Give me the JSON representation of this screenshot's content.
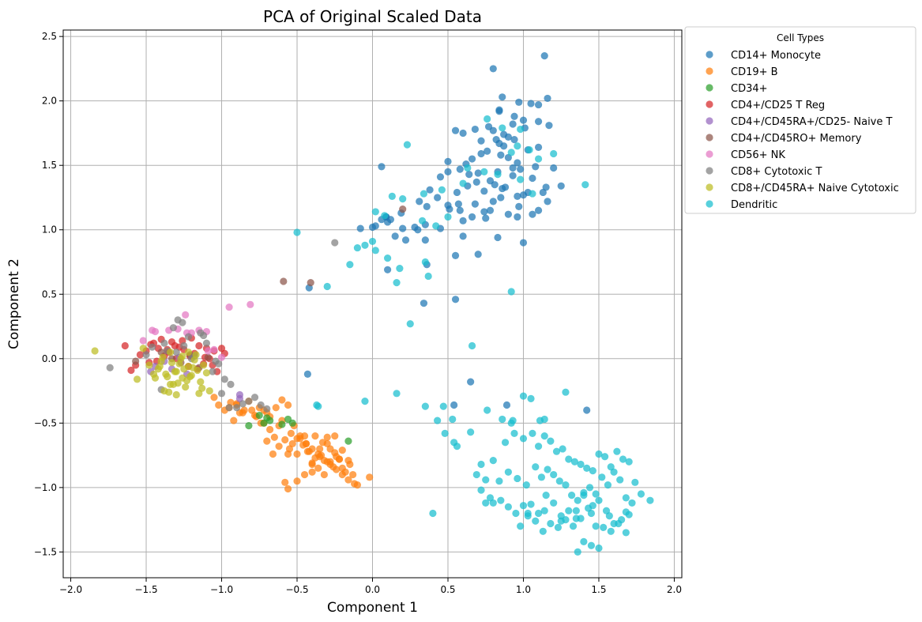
{
  "chart_data": {
    "type": "scatter",
    "title": "PCA of Original Scaled Data",
    "xlabel": "Component 1",
    "ylabel": "Component 2",
    "xlim": [
      -2.05,
      2.05
    ],
    "ylim": [
      -1.7,
      2.55
    ],
    "xticks": [
      -2.0,
      -1.5,
      -1.0,
      -0.5,
      0.0,
      0.5,
      1.0,
      1.5,
      2.0
    ],
    "xtick_labels": [
      "−2.0",
      "−1.5",
      "−1.0",
      "−0.5",
      "0.0",
      "0.5",
      "1.0",
      "1.5",
      "2.0"
    ],
    "yticks": [
      -1.5,
      -1.0,
      -0.5,
      0.0,
      0.5,
      1.0,
      1.5,
      2.0,
      2.5
    ],
    "ytick_labels": [
      "−1.5",
      "−1.0",
      "−0.5",
      "0.0",
      "0.5",
      "1.0",
      "1.5",
      "2.0",
      "2.5"
    ],
    "grid": true,
    "legend_title": "Cell Types",
    "legend_position": "outside-top-right",
    "series": [
      {
        "name": "CD14+ Monocyte",
        "color": "#1f77b4",
        "x": [
          1.14,
          0.8,
          0.86,
          1.16,
          1.1,
          0.97,
          1.17,
          0.84,
          0.84,
          0.94,
          1.0,
          1.05,
          1.01,
          0.93,
          0.8,
          0.87,
          0.9,
          1.1,
          0.55,
          0.6,
          0.68,
          0.72,
          0.77,
          0.82,
          0.84,
          0.87,
          0.94,
          1.03,
          1.1,
          0.5,
          0.62,
          0.66,
          0.72,
          0.76,
          0.85,
          0.9,
          0.96,
          1.08,
          1.2,
          0.45,
          0.5,
          0.58,
          0.64,
          0.7,
          0.78,
          0.83,
          0.93,
          0.98,
          1.06,
          0.38,
          0.43,
          0.56,
          0.63,
          0.69,
          0.74,
          0.81,
          0.88,
          0.96,
          1.03,
          1.15,
          1.25,
          0.31,
          0.36,
          0.5,
          0.58,
          0.66,
          0.74,
          0.8,
          0.9,
          0.97,
          1.1,
          1.13,
          0.12,
          0.19,
          0.28,
          0.35,
          0.45,
          0.51,
          0.6,
          0.68,
          0.75,
          0.83,
          0.96,
          1.0,
          0.06,
          0.1,
          0.0,
          0.02,
          0.06,
          0.09,
          0.15,
          0.22,
          0.3,
          0.36,
          0.55,
          0.7,
          0.78,
          0.85,
          1.0,
          0.1,
          0.34,
          0.55,
          -0.42,
          -0.43,
          0.6,
          0.35,
          0.54,
          0.65,
          0.89,
          1.42,
          -0.08,
          0.2,
          0.09,
          0.57,
          0.86,
          0.93,
          1.06,
          1.16
        ],
        "y": [
          2.35,
          2.25,
          2.03,
          2.02,
          1.97,
          1.99,
          1.81,
          1.93,
          1.92,
          1.88,
          1.85,
          1.98,
          1.79,
          1.82,
          1.77,
          1.74,
          1.72,
          1.84,
          1.77,
          1.75,
          1.78,
          1.69,
          1.8,
          1.7,
          1.67,
          1.65,
          1.7,
          1.62,
          1.64,
          1.53,
          1.51,
          1.55,
          1.59,
          1.61,
          1.58,
          1.56,
          1.52,
          1.49,
          1.48,
          1.41,
          1.45,
          1.47,
          1.43,
          1.44,
          1.38,
          1.45,
          1.42,
          1.47,
          1.4,
          1.31,
          1.25,
          1.29,
          1.34,
          1.37,
          1.3,
          1.35,
          1.33,
          1.26,
          1.29,
          1.33,
          1.34,
          1.22,
          1.18,
          1.19,
          1.15,
          1.1,
          1.14,
          1.22,
          1.12,
          1.18,
          1.15,
          1.29,
          1.08,
          1.13,
          1.02,
          1.04,
          1.01,
          1.16,
          1.07,
          1.2,
          1.09,
          0.94,
          1.1,
          0.9,
          1.49,
          1.06,
          1.02,
          1.03,
          1.08,
          1.1,
          0.95,
          0.92,
          1.0,
          0.73,
          0.8,
          0.81,
          1.15,
          1.25,
          1.27,
          0.69,
          0.43,
          0.46,
          0.55,
          -0.12,
          0.95,
          0.92,
          -0.36,
          -0.18,
          -0.36,
          -0.4,
          1.01,
          1.01,
          1.1,
          1.2,
          1.32,
          1.48,
          1.12,
          1.22
        ]
      },
      {
        "name": "CD19+ B",
        "color": "#ff7f0e",
        "x": [
          -1.05,
          -1.02,
          -0.98,
          -0.95,
          -0.92,
          -0.9,
          -0.88,
          -0.85,
          -0.82,
          -0.8,
          -0.77,
          -0.75,
          -0.72,
          -0.7,
          -0.68,
          -0.65,
          -0.62,
          -0.6,
          -0.58,
          -0.55,
          -0.53,
          -0.5,
          -0.48,
          -0.45,
          -0.43,
          -0.4,
          -0.38,
          -0.35,
          -0.33,
          -0.3,
          -0.28,
          -0.25,
          -0.22,
          -0.2,
          -0.18,
          -0.15,
          -0.13,
          -0.1,
          -0.02,
          -0.72,
          -0.68,
          -0.64,
          -0.6,
          -0.56,
          -0.52,
          -0.48,
          -0.44,
          -0.4,
          -0.36,
          -0.32,
          -0.28,
          -0.24,
          -0.2,
          -0.16,
          -0.12,
          -0.54,
          -0.5,
          -0.46,
          -0.42,
          -0.38,
          -0.34,
          -0.3,
          -0.26,
          -0.22,
          -0.56,
          -0.58,
          -0.62,
          -0.66,
          -0.7,
          -0.74,
          -0.78,
          -0.86,
          -0.9,
          -0.94,
          -0.44,
          -0.4,
          -0.36,
          -0.32,
          -0.28,
          -0.24,
          -0.2,
          -0.16,
          -0.56,
          -0.5,
          -0.45,
          -0.4,
          -0.35,
          -0.3,
          -0.25
        ],
        "y": [
          -0.3,
          -0.36,
          -0.4,
          -0.38,
          -0.48,
          -0.35,
          -0.42,
          -0.4,
          -0.33,
          -0.4,
          -0.45,
          -0.38,
          -0.5,
          -0.42,
          -0.55,
          -0.61,
          -0.52,
          -0.48,
          -0.63,
          -0.7,
          -0.66,
          -0.74,
          -0.62,
          -0.6,
          -0.72,
          -0.81,
          -0.6,
          -0.76,
          -0.65,
          -0.61,
          -0.7,
          -0.73,
          -0.78,
          -0.85,
          -0.88,
          -0.82,
          -0.9,
          -0.98,
          -0.92,
          -0.4,
          -0.45,
          -0.38,
          -0.32,
          -0.36,
          -0.52,
          -0.6,
          -0.66,
          -0.7,
          -0.74,
          -0.79,
          -0.82,
          -0.86,
          -0.9,
          -0.94,
          -0.97,
          -0.58,
          -0.62,
          -0.67,
          -0.72,
          -0.77,
          -0.75,
          -0.8,
          -0.84,
          -0.78,
          -1.01,
          -0.96,
          -0.68,
          -0.74,
          -0.64,
          -0.5,
          -0.44,
          -0.42,
          -0.36,
          -0.34,
          -0.66,
          -0.82,
          -0.85,
          -0.9,
          -0.8,
          -0.76,
          -0.71,
          -0.79,
          -0.74,
          -0.95,
          -0.9,
          -0.88,
          -0.7,
          -0.66,
          -0.6
        ]
      },
      {
        "name": "CD34+",
        "color": "#2ca02c",
        "x": [
          -0.82,
          -0.7,
          -0.68,
          -0.72,
          -0.6,
          -0.53,
          -0.56,
          -0.75,
          -0.16
        ],
        "y": [
          -0.52,
          -0.46,
          -0.48,
          -0.5,
          -0.51,
          -0.5,
          -0.47,
          -0.44,
          -0.64
        ]
      },
      {
        "name": "CD4+/CD25 T Reg",
        "color": "#d62728",
        "x": [
          -1.64,
          -1.6,
          -1.57,
          -1.54,
          -1.5,
          -1.48,
          -1.45,
          -1.42,
          -1.4,
          -1.38,
          -1.35,
          -1.33,
          -1.3,
          -1.28,
          -1.25,
          -1.22,
          -1.2,
          -1.18,
          -1.15,
          -1.12,
          -1.1,
          -1.08,
          -1.05,
          -1.03,
          -1.0,
          -0.98,
          -1.47,
          -1.43,
          -1.36,
          -1.31,
          -1.26,
          -1.21,
          -1.16,
          -1.11,
          -1.06
        ],
        "y": [
          0.1,
          -0.09,
          -0.05,
          0.03,
          0.06,
          -0.03,
          0.12,
          0.08,
          0.15,
          0.02,
          0.05,
          0.13,
          0.0,
          0.09,
          0.07,
          -0.06,
          0.16,
          0.04,
          0.1,
          -0.04,
          0.08,
          0.0,
          0.06,
          -0.1,
          0.08,
          0.04,
          0.11,
          -0.02,
          0.07,
          0.1,
          0.14,
          0.02,
          -0.08,
          0.01,
          -0.05
        ]
      },
      {
        "name": "CD4+/CD45RA+/CD25- Naive T",
        "color": "#9467bd",
        "x": [
          -1.47,
          -1.44,
          -1.38,
          -1.33,
          -1.28,
          -1.23,
          -0.88,
          -0.88
        ],
        "y": [
          -0.1,
          -0.06,
          -0.02,
          -0.08,
          0.01,
          -0.12,
          -0.28,
          -0.31
        ]
      },
      {
        "name": "CD4+/CD45RO+ Memory",
        "color": "#8c564b",
        "x": [
          -1.57,
          -1.4,
          -1.33,
          -1.27,
          -1.21,
          -1.15,
          -1.09,
          -0.59,
          -0.41,
          0.2
        ],
        "y": [
          -0.02,
          0.05,
          0.0,
          -0.03,
          0.03,
          -0.07,
          0.01,
          0.6,
          0.59,
          1.16
        ]
      },
      {
        "name": "CD56+ NK",
        "color": "#e377c2",
        "x": [
          -1.52,
          -1.46,
          -1.44,
          -1.35,
          -1.29,
          -1.24,
          -1.2,
          -1.15,
          -1.1,
          -1.05,
          -1.0,
          -0.95,
          -0.81,
          -1.23,
          -1.09
        ],
        "y": [
          0.14,
          0.22,
          0.21,
          0.22,
          0.23,
          0.34,
          0.2,
          0.22,
          0.21,
          0.07,
          0.01,
          0.4,
          0.42,
          0.2,
          0.06
        ]
      },
      {
        "name": "CD8+ Cytotoxic T",
        "color": "#7f7f7f",
        "x": [
          -1.74,
          -1.5,
          -1.46,
          -1.4,
          -1.36,
          -1.32,
          -1.29,
          -1.26,
          -1.22,
          -1.18,
          -1.14,
          -1.1,
          -1.06,
          -1.02,
          -0.98,
          -0.94,
          -0.9,
          -0.86,
          -0.82,
          -0.78,
          -0.74,
          -0.7,
          -1.38,
          -1.3,
          -1.25,
          -1.2,
          -1.12,
          -1.04,
          -0.25,
          -0.95,
          -1.0
        ],
        "y": [
          -0.07,
          0.03,
          0.09,
          -0.24,
          0.06,
          0.24,
          0.3,
          0.28,
          0.17,
          0.02,
          0.2,
          0.12,
          -0.1,
          -0.04,
          -0.16,
          -0.2,
          -0.38,
          -0.35,
          -0.33,
          -0.3,
          -0.36,
          -0.39,
          0.12,
          0.05,
          0.1,
          0.0,
          0.18,
          -0.02,
          0.9,
          -0.38,
          -0.27
        ]
      },
      {
        "name": "CD8+/CD45RA+ Naive Cytotoxic",
        "color": "#bcbd22",
        "x": [
          -1.84,
          -1.56,
          -1.52,
          -1.48,
          -1.45,
          -1.42,
          -1.4,
          -1.38,
          -1.36,
          -1.34,
          -1.32,
          -1.3,
          -1.28,
          -1.26,
          -1.24,
          -1.22,
          -1.2,
          -1.18,
          -1.16,
          -1.14,
          -1.12,
          -1.1,
          -1.08,
          -1.44,
          -1.39,
          -1.35,
          -1.31,
          -1.27,
          -1.23,
          -1.19,
          -1.15,
          -1.37,
          -1.33,
          -1.29,
          -1.25,
          -1.21,
          -1.17,
          -1.13,
          -1.41,
          -1.3,
          -1.22,
          -1.26,
          -1.34
        ],
        "y": [
          0.06,
          -0.16,
          0.08,
          -0.05,
          -0.12,
          -0.08,
          -0.02,
          -0.25,
          -0.14,
          0.05,
          -0.2,
          -0.1,
          -0.04,
          0.02,
          -0.22,
          -0.06,
          -0.13,
          -0.01,
          -0.09,
          -0.18,
          -0.05,
          -0.11,
          -0.25,
          -0.15,
          0.01,
          -0.26,
          -0.1,
          0.0,
          -0.17,
          -0.07,
          -0.27,
          -0.12,
          -0.03,
          -0.19,
          -0.08,
          -0.14,
          0.03,
          -0.23,
          -0.06,
          -0.28,
          0.05,
          -0.15,
          -0.2
        ]
      },
      {
        "name": "Dendritic",
        "color": "#17becf",
        "x": [
          0.76,
          0.86,
          0.98,
          1.04,
          0.92,
          0.96,
          1.1,
          1.2,
          0.23,
          0.13,
          0.2,
          0.34,
          0.46,
          0.63,
          0.6,
          0.74,
          0.83,
          0.98,
          1.06,
          1.41,
          -0.5,
          -0.3,
          -0.15,
          -0.1,
          -0.05,
          0.0,
          0.02,
          0.1,
          0.16,
          0.18,
          0.35,
          0.37,
          0.42,
          0.25,
          0.92,
          0.66,
          -0.37,
          -0.36,
          -0.05,
          0.16,
          0.35,
          0.47,
          0.53,
          0.65,
          0.76,
          0.86,
          0.93,
          1.0,
          1.05,
          1.11,
          1.14,
          1.28,
          0.43,
          0.48,
          0.54,
          0.56,
          0.4,
          0.69,
          0.72,
          0.75,
          0.8,
          0.88,
          0.92,
          0.94,
          1.0,
          1.06,
          1.1,
          1.14,
          1.18,
          1.22,
          1.26,
          1.3,
          1.34,
          1.38,
          1.42,
          1.46,
          1.5,
          1.54,
          1.58,
          1.62,
          1.66,
          1.7,
          1.74,
          1.78,
          1.84,
          0.72,
          0.78,
          0.84,
          0.9,
          0.96,
          1.02,
          1.08,
          1.12,
          1.16,
          1.2,
          1.24,
          1.28,
          1.32,
          1.36,
          1.4,
          1.44,
          1.48,
          1.52,
          1.56,
          1.6,
          1.64,
          1.68,
          1.72,
          0.75,
          0.8,
          0.85,
          0.9,
          0.95,
          1.0,
          1.05,
          1.1,
          1.15,
          1.2,
          1.25,
          1.3,
          1.35,
          1.4,
          1.45,
          1.5,
          1.55,
          1.6,
          1.65,
          1.7,
          0.98,
          1.03,
          1.08,
          1.13,
          1.18,
          1.23,
          1.28,
          1.33,
          1.38,
          1.43,
          1.48,
          1.53,
          1.58,
          1.63,
          1.68,
          1.36,
          1.4,
          1.45,
          1.5,
          1.03,
          1.14,
          1.25,
          1.35,
          1.46,
          1.57,
          1.68,
          0.02,
          0.08,
          0.33,
          0.5
        ],
        "y": [
          1.86,
          1.79,
          1.78,
          1.62,
          1.6,
          1.65,
          1.55,
          1.59,
          1.66,
          1.26,
          1.24,
          1.28,
          1.31,
          1.48,
          1.36,
          1.45,
          1.43,
          1.39,
          1.28,
          1.35,
          0.98,
          0.56,
          0.73,
          0.86,
          0.88,
          0.91,
          0.84,
          0.78,
          0.59,
          0.7,
          0.75,
          0.64,
          1.03,
          0.27,
          0.52,
          0.1,
          -0.36,
          -0.37,
          -0.33,
          -0.27,
          -0.37,
          -0.37,
          -0.47,
          -0.57,
          -0.4,
          -0.47,
          -0.48,
          -0.29,
          -0.31,
          -0.48,
          -0.47,
          -0.26,
          -0.48,
          -0.58,
          -0.65,
          -0.68,
          -1.2,
          -0.9,
          -0.82,
          -0.94,
          -0.79,
          -0.65,
          -0.5,
          -0.58,
          -0.62,
          -0.58,
          -0.68,
          -0.6,
          -0.64,
          -0.72,
          -0.7,
          -0.78,
          -0.8,
          -0.82,
          -0.85,
          -0.87,
          -0.74,
          -0.76,
          -0.84,
          -0.72,
          -0.78,
          -0.8,
          -0.96,
          -1.05,
          -1.1,
          -1.02,
          -1.08,
          -0.95,
          -0.88,
          -0.93,
          -0.98,
          -0.84,
          -0.92,
          -0.86,
          -0.9,
          -0.95,
          -0.98,
          -1.06,
          -1.1,
          -1.04,
          -1.0,
          -1.05,
          -0.92,
          -0.98,
          -0.88,
          -0.94,
          -1.08,
          -1.12,
          -1.12,
          -1.12,
          -1.1,
          -1.15,
          -1.2,
          -1.14,
          -1.13,
          -1.2,
          -1.06,
          -1.12,
          -1.22,
          -1.18,
          -1.24,
          -1.06,
          -1.2,
          -1.1,
          -1.18,
          -1.28,
          -1.25,
          -1.21,
          -1.3,
          -1.22,
          -1.26,
          -1.34,
          -1.28,
          -1.31,
          -1.25,
          -1.3,
          -1.24,
          -1.16,
          -1.3,
          -1.31,
          -1.34,
          -1.28,
          -1.35,
          -1.5,
          -1.42,
          -1.45,
          -1.47,
          -1.2,
          -1.18,
          -1.26,
          -1.18,
          -1.14,
          -1.22,
          -1.19,
          1.14,
          1.11,
          1.07,
          1.1
        ]
      }
    ]
  }
}
